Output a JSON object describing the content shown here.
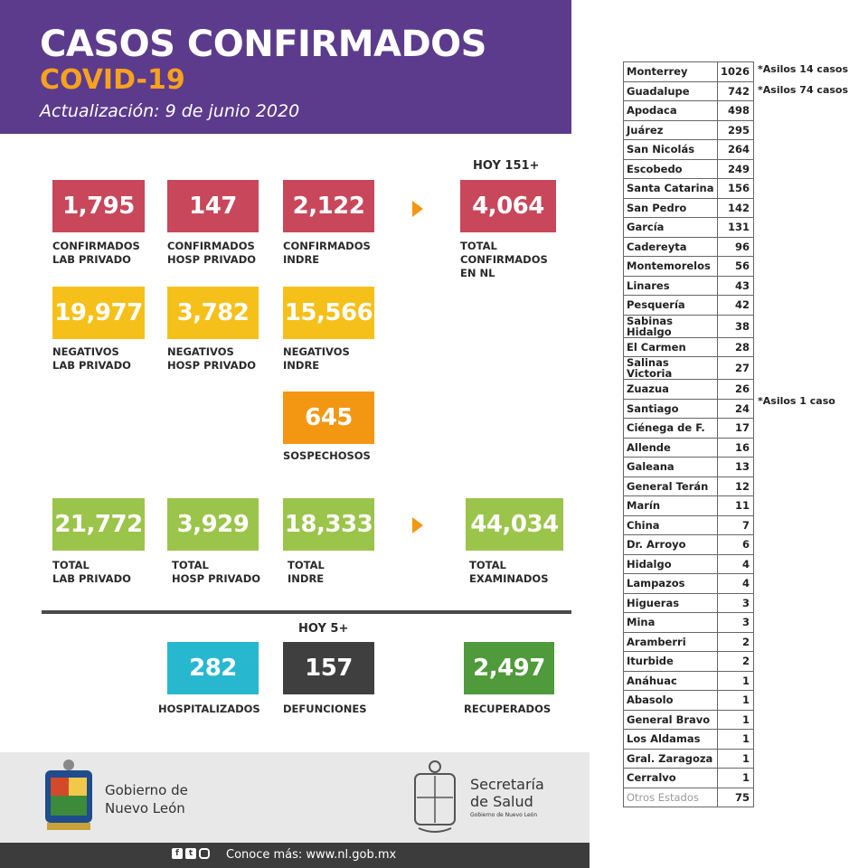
{
  "header": {
    "title": "CASOS CONFIRMADOS",
    "subtitle": "COVID-19",
    "update": "Actualización: 9 de junio 2020"
  },
  "hoy_confirmados": "HOY 151+",
  "hoy_defunciones": "HOY 5+",
  "confirmados": [
    {
      "value": "1,795",
      "label": "CONFIRMADOS\nLAB PRIVADO"
    },
    {
      "value": "147",
      "label": "CONFIRMADOS\nHOSP PRIVADO"
    },
    {
      "value": "2,122",
      "label": "CONFIRMADOS\nINDRE"
    },
    {
      "value": "4,064",
      "label": "TOTAL\nCONFIRMADOS\nEN NL"
    }
  ],
  "negativos": [
    {
      "value": "19,977",
      "label": "NEGATIVOS\nLAB PRIVADO"
    },
    {
      "value": "3,782",
      "label": "NEGATIVOS\nHOSP PRIVADO"
    },
    {
      "value": "15,566",
      "label": "NEGATIVOS\nINDRE"
    }
  ],
  "sospechosos": {
    "value": "645",
    "label": "SOSPECHOSOS"
  },
  "totales": [
    {
      "value": "21,772",
      "label": "TOTAL\nLAB PRIVADO"
    },
    {
      "value": "3,929",
      "label": "TOTAL\nHOSP PRIVADO"
    },
    {
      "value": "18,333",
      "label": "TOTAL\nINDRE"
    },
    {
      "value": "44,034",
      "label": "TOTAL\nEXAMINADOS"
    }
  ],
  "resumen": [
    {
      "value": "282",
      "label": "HOSPITALIZADOS"
    },
    {
      "value": "157",
      "label": "DEFUNCIONES"
    },
    {
      "value": "2,497",
      "label": "RECUPERADOS"
    }
  ],
  "municipios": [
    {
      "name": "Monterrey",
      "value": "1026"
    },
    {
      "name": "Guadalupe",
      "value": "742"
    },
    {
      "name": "Apodaca",
      "value": "498"
    },
    {
      "name": "Juárez",
      "value": "295"
    },
    {
      "name": "San Nicolás",
      "value": "264"
    },
    {
      "name": "Escobedo",
      "value": "249"
    },
    {
      "name": "Santa Catarina",
      "value": "156"
    },
    {
      "name": "San Pedro",
      "value": "142"
    },
    {
      "name": "García",
      "value": "131"
    },
    {
      "name": "Cadereyta",
      "value": "96"
    },
    {
      "name": "Montemorelos",
      "value": "56"
    },
    {
      "name": "Linares",
      "value": "43"
    },
    {
      "name": "Pesquería",
      "value": "42"
    },
    {
      "name": "Sabinas Hidalgo",
      "value": "38"
    },
    {
      "name": "El Carmen",
      "value": "28"
    },
    {
      "name": "Salinas Victoria",
      "value": "27"
    },
    {
      "name": "Zuazua",
      "value": "26"
    },
    {
      "name": "Santiago",
      "value": "24"
    },
    {
      "name": "Ciénega de F.",
      "value": "17"
    },
    {
      "name": "Allende",
      "value": "16"
    },
    {
      "name": "Galeana",
      "value": "13"
    },
    {
      "name": "General Terán",
      "value": "12"
    },
    {
      "name": "Marín",
      "value": "11"
    },
    {
      "name": "China",
      "value": "7"
    },
    {
      "name": "Dr. Arroyo",
      "value": "6"
    },
    {
      "name": "Hidalgo",
      "value": "4"
    },
    {
      "name": "Lampazos",
      "value": "4"
    },
    {
      "name": "Higueras",
      "value": "3"
    },
    {
      "name": "Mina",
      "value": "3"
    },
    {
      "name": "Aramberri",
      "value": "2"
    },
    {
      "name": "Iturbide",
      "value": "2"
    },
    {
      "name": "Anáhuac",
      "value": "1"
    },
    {
      "name": "Abasolo",
      "value": "1"
    },
    {
      "name": "General Bravo",
      "value": "1"
    },
    {
      "name": "Los Aldamas",
      "value": "1"
    },
    {
      "name": "Gral. Zaragoza",
      "value": "1"
    },
    {
      "name": "Cerralvo",
      "value": "1"
    },
    {
      "name": "Otros Estados",
      "value": "75"
    }
  ],
  "notes": {
    "monterrey": "*Asilos 14 casos",
    "guadalupe": "*Asilos 74 casos",
    "santiago": "*Asilos 1 caso"
  },
  "footer": {
    "gobierno_line1": "Gobierno de",
    "gobierno_line2": "Nuevo León",
    "salud_line1": "Secretaría",
    "salud_line2": "de Salud",
    "salud_sub": "Gobierno de Nuevo León",
    "social_facebook": "f",
    "social_twitter": "t",
    "more": "Conoce más: www.nl.gob.mx"
  },
  "colors": {
    "header": "#5c3b8c",
    "accent": "#f6a21e",
    "red": "#c8475a",
    "yellow": "#f6c01a",
    "orange": "#f39712",
    "green": "#9bc44a",
    "cyan": "#27b8d0",
    "dark": "#3f3f3f",
    "dark_green": "#4f9a3a"
  }
}
